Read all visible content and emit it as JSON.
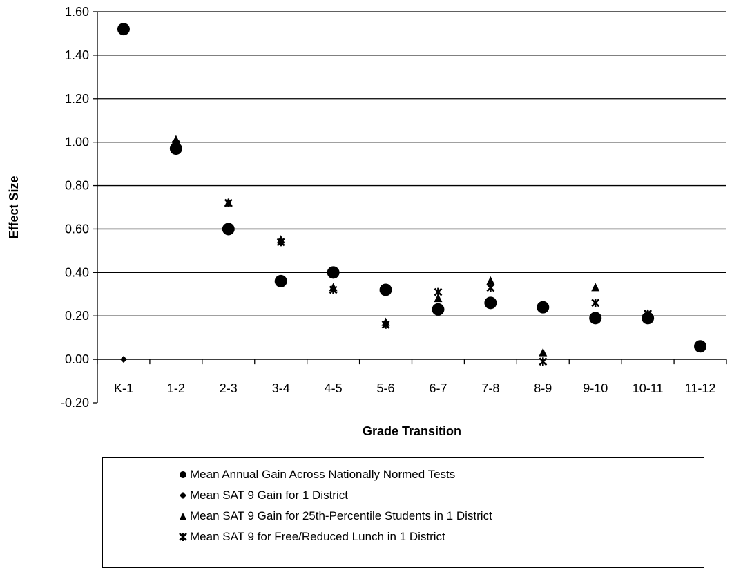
{
  "chart_data": {
    "type": "scatter",
    "xlabel": "Grade Transition",
    "ylabel": "Effect Size",
    "ylim": [
      -0.2,
      1.6
    ],
    "yticks": [
      "1.60",
      "1.40",
      "1.20",
      "1.00",
      "0.80",
      "0.60",
      "0.40",
      "0.20",
      "0.00",
      "-0.20"
    ],
    "categories": [
      "K-1",
      "1-2",
      "2-3",
      "3-4",
      "4-5",
      "5-6",
      "6-7",
      "7-8",
      "8-9",
      "9-10",
      "10-11",
      "11-12"
    ],
    "grid": "horizontal",
    "legend_position": "bottom",
    "series": [
      {
        "name": "Mean Annual Gain Across Nationally Normed Tests",
        "marker": "circle",
        "values": [
          1.52,
          0.97,
          0.6,
          0.36,
          0.4,
          0.32,
          0.23,
          0.26,
          0.24,
          0.19,
          0.19,
          0.06
        ]
      },
      {
        "name": "Mean SAT 9 Gain for 1 District",
        "marker": "diamond",
        "values": [
          0.0,
          null,
          null,
          null,
          null,
          null,
          null,
          null,
          null,
          null,
          null,
          null
        ]
      },
      {
        "name": "Mean SAT 9 Gain for 25th-Percentile Students in 1 District",
        "marker": "triangle",
        "values": [
          null,
          1.01,
          0.72,
          0.55,
          0.33,
          0.17,
          0.28,
          0.36,
          0.03,
          0.33,
          0.21,
          null
        ]
      },
      {
        "name": "Mean SAT 9 for Free/Reduced Lunch in 1 District",
        "marker": "star",
        "values": [
          null,
          0.99,
          0.72,
          0.54,
          0.32,
          0.16,
          0.31,
          0.33,
          -0.01,
          0.26,
          0.21,
          null
        ]
      }
    ]
  }
}
